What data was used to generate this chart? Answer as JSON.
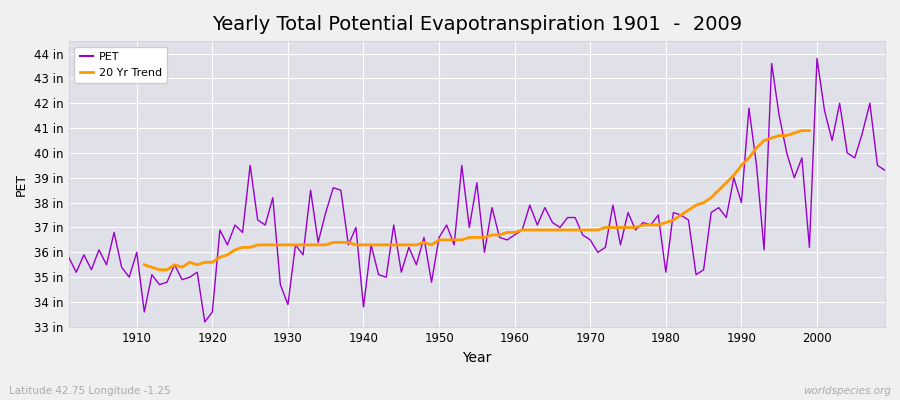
{
  "title": "Yearly Total Potential Evapotranspiration 1901  -  2009",
  "xlabel": "Year",
  "ylabel": "PET",
  "lat_lon_label": "Latitude 42.75 Longitude -1.25",
  "watermark": "worldspecies.org",
  "ylim": [
    33,
    44.5
  ],
  "xlim": [
    1901,
    2009
  ],
  "yticks": [
    33,
    34,
    35,
    36,
    37,
    38,
    39,
    40,
    41,
    42,
    43,
    44
  ],
  "ytick_labels": [
    "33 in",
    "34 in",
    "35 in",
    "36 in",
    "37 in",
    "38 in",
    "39 in",
    "40 in",
    "41 in",
    "42 in",
    "43 in",
    "44 in"
  ],
  "xticks": [
    1910,
    1920,
    1930,
    1940,
    1950,
    1960,
    1970,
    1980,
    1990,
    2000
  ],
  "pet_color": "#9900cc",
  "trend_color": "#ff9900",
  "background_color": "#f0f0f0",
  "plot_bg_color": "#e0e0e8",
  "grid_color": "#ffffff",
  "title_fontsize": 14,
  "years": [
    1901,
    1902,
    1903,
    1904,
    1905,
    1906,
    1907,
    1908,
    1909,
    1910,
    1911,
    1912,
    1913,
    1914,
    1915,
    1916,
    1917,
    1918,
    1919,
    1920,
    1921,
    1922,
    1923,
    1924,
    1925,
    1926,
    1927,
    1928,
    1929,
    1930,
    1931,
    1932,
    1933,
    1934,
    1935,
    1936,
    1937,
    1938,
    1939,
    1940,
    1941,
    1942,
    1943,
    1944,
    1945,
    1946,
    1947,
    1948,
    1949,
    1950,
    1951,
    1952,
    1953,
    1954,
    1955,
    1956,
    1957,
    1958,
    1959,
    1960,
    1961,
    1962,
    1963,
    1964,
    1965,
    1966,
    1967,
    1968,
    1969,
    1970,
    1971,
    1972,
    1973,
    1974,
    1975,
    1976,
    1977,
    1978,
    1979,
    1980,
    1981,
    1982,
    1983,
    1984,
    1985,
    1986,
    1987,
    1988,
    1989,
    1990,
    1991,
    1992,
    1993,
    1994,
    1995,
    1996,
    1997,
    1998,
    1999,
    2000,
    2001,
    2002,
    2003,
    2004,
    2005,
    2006,
    2007,
    2008,
    2009
  ],
  "pet_values": [
    35.8,
    35.2,
    35.9,
    35.3,
    36.1,
    35.5,
    36.8,
    35.4,
    35.0,
    36.0,
    33.6,
    35.1,
    34.7,
    34.8,
    35.5,
    34.9,
    35.0,
    35.2,
    33.2,
    33.6,
    36.9,
    36.3,
    37.1,
    36.8,
    39.5,
    37.3,
    37.1,
    38.2,
    34.7,
    33.9,
    36.3,
    35.9,
    38.5,
    36.4,
    37.6,
    38.6,
    38.5,
    36.3,
    37.0,
    33.8,
    36.3,
    35.1,
    35.0,
    37.1,
    35.2,
    36.2,
    35.5,
    36.6,
    34.8,
    36.6,
    37.1,
    36.3,
    39.5,
    37.0,
    38.8,
    36.0,
    37.8,
    36.6,
    36.5,
    36.7,
    36.9,
    37.9,
    37.1,
    37.8,
    37.2,
    37.0,
    37.4,
    37.4,
    36.7,
    36.5,
    36.0,
    36.2,
    37.9,
    36.3,
    37.6,
    36.9,
    37.2,
    37.1,
    37.5,
    35.2,
    37.6,
    37.5,
    37.3,
    35.1,
    35.3,
    37.6,
    37.8,
    37.4,
    39.0,
    38.0,
    41.8,
    39.5,
    36.1,
    43.6,
    41.5,
    40.0,
    39.0,
    39.8,
    36.2,
    43.8,
    41.7,
    40.5,
    42.0,
    40.0,
    39.8,
    40.8,
    42.0,
    39.5,
    39.3
  ],
  "trend_start_year": 1911,
  "trend_end_year": 1999,
  "trend_values_trimmed": [
    35.5,
    35.4,
    35.3,
    35.3,
    35.5,
    35.4,
    35.6,
    35.5,
    35.6,
    35.6,
    35.8,
    35.9,
    36.1,
    36.2,
    36.2,
    36.3,
    36.3,
    36.3,
    36.3,
    36.3,
    36.3,
    36.3,
    36.3,
    36.3,
    36.3,
    36.4,
    36.4,
    36.4,
    36.3,
    36.3,
    36.3,
    36.3,
    36.3,
    36.3,
    36.3,
    36.3,
    36.3,
    36.4,
    36.3,
    36.5,
    36.5,
    36.5,
    36.5,
    36.6,
    36.6,
    36.6,
    36.7,
    36.7,
    36.8,
    36.8,
    36.9,
    36.9,
    36.9,
    36.9,
    36.9,
    36.9,
    36.9,
    36.9,
    36.9,
    36.9,
    36.9,
    37.0,
    37.0,
    37.0,
    37.0,
    37.0,
    37.1,
    37.1,
    37.1,
    37.2,
    37.3,
    37.5,
    37.7,
    37.9,
    38.0,
    38.2,
    38.5,
    38.8,
    39.1,
    39.5,
    39.8,
    40.2,
    40.5,
    40.6,
    40.7,
    40.7,
    40.8,
    40.9,
    40.9
  ]
}
